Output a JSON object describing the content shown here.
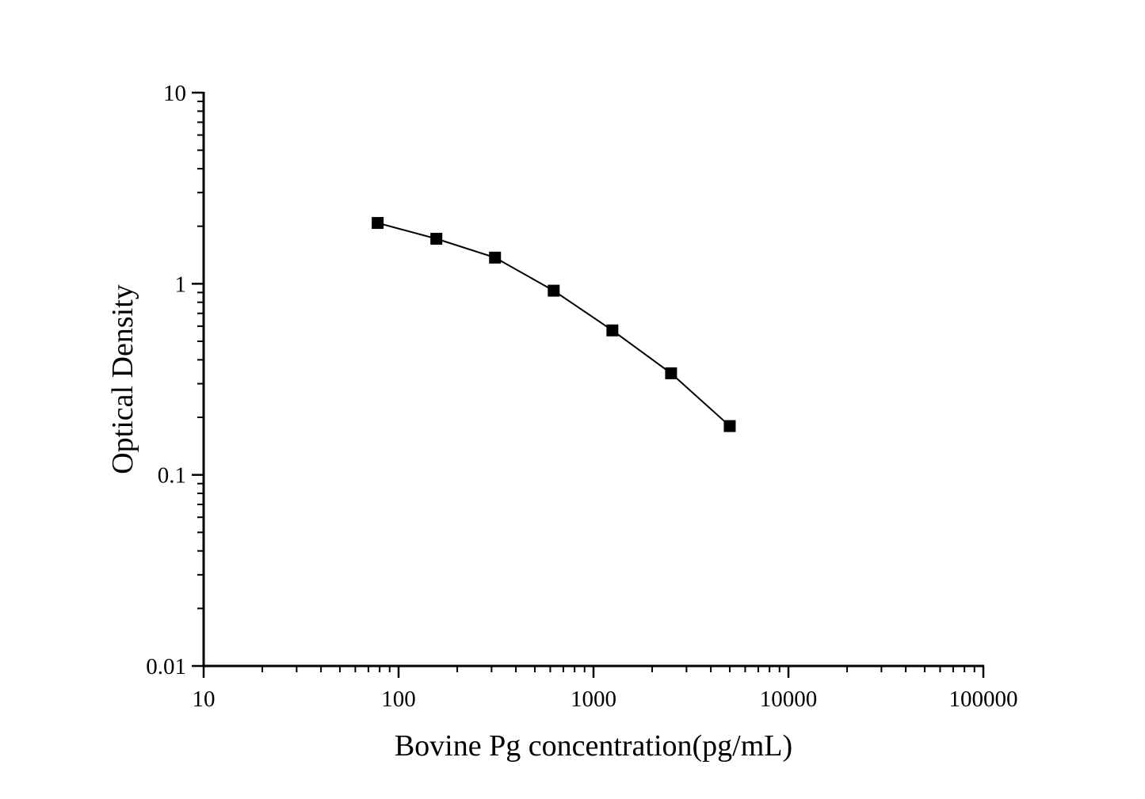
{
  "page": {
    "background_color": "#ffffff",
    "foreground_color": "#000000"
  },
  "chart_data": {
    "type": "line",
    "title": "",
    "xlabel": "Bovine Pg concentration(pg/mL)",
    "ylabel": "Optical Density",
    "x_scale": "log",
    "y_scale": "log",
    "xlim": [
      10,
      100000
    ],
    "ylim": [
      0.01,
      10
    ],
    "x_ticks": [
      10,
      100,
      1000,
      10000,
      100000
    ],
    "x_tick_labels": [
      "10",
      "100",
      "1000",
      "10000",
      "100000"
    ],
    "y_ticks": [
      10,
      1,
      0.1,
      0.01
    ],
    "y_tick_labels": [
      "10",
      "1",
      "0.1",
      "0.01"
    ],
    "grid": false,
    "legend_position": "none",
    "marker": "filled-square",
    "line_color": "#000000",
    "marker_color": "#000000",
    "axis_color": "#000000",
    "series": [
      {
        "name": "standard-curve",
        "x": [
          78.125,
          156.25,
          312.5,
          625,
          1250,
          2500,
          5000
        ],
        "y": [
          2.08,
          1.72,
          1.37,
          0.92,
          0.57,
          0.34,
          0.18
        ]
      }
    ]
  }
}
